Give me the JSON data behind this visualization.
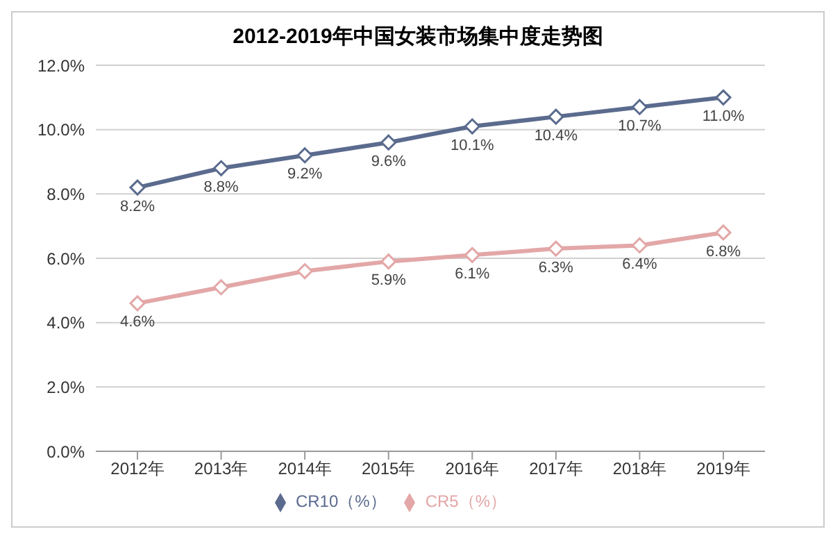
{
  "chart_data": {
    "type": "line",
    "title": "2012-2019年中国女装市场集中度走势图",
    "categories": [
      "2012年",
      "2013年",
      "2014年",
      "2015年",
      "2016年",
      "2017年",
      "2018年",
      "2019年"
    ],
    "series": [
      {
        "name": "CR10（%）",
        "color": "#5b6b8e",
        "values": [
          8.2,
          8.8,
          9.2,
          9.6,
          10.1,
          10.4,
          10.7,
          11.0
        ],
        "value_labels": [
          "8.2%",
          "8.8%",
          "9.2%",
          "9.6%",
          "10.1%",
          "10.4%",
          "10.7%",
          "11.0%"
        ]
      },
      {
        "name": "CR5（%）",
        "color": "#e3a7a7",
        "values": [
          4.6,
          5.1,
          5.6,
          5.9,
          6.1,
          6.3,
          6.4,
          6.8
        ],
        "value_labels": [
          "4.6%",
          null,
          null,
          "5.9%",
          "6.1%",
          "6.3%",
          "6.4%",
          "6.8%"
        ]
      }
    ],
    "ylim": [
      0,
      12
    ],
    "yticks": [
      {
        "value": 0,
        "label": "0.0%"
      },
      {
        "value": 2,
        "label": "2.0%"
      },
      {
        "value": 4,
        "label": "4.0%"
      },
      {
        "value": 6,
        "label": "6.0%"
      },
      {
        "value": 8,
        "label": "8.0%"
      },
      {
        "value": 10,
        "label": "10.0%"
      },
      {
        "value": 12,
        "label": "12.0%"
      }
    ],
    "grid": "y",
    "legend": "bottom",
    "marker": "diamond",
    "line_style": "solid"
  }
}
